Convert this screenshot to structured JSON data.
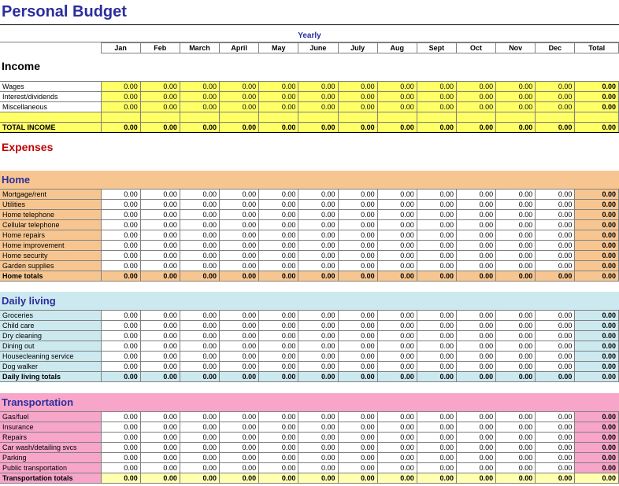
{
  "title": "Personal Budget",
  "yearly_label": "Yearly",
  "months": [
    "Jan",
    "Feb",
    "March",
    "April",
    "May",
    "June",
    "July",
    "Aug",
    "Sept",
    "Oct",
    "Nov",
    "Dec"
  ],
  "total_label": "Total",
  "sections": {
    "income": {
      "title": "Income",
      "rows": [
        {
          "label": "Wages",
          "vals": [
            "0.00",
            "0.00",
            "0.00",
            "0.00",
            "0.00",
            "0.00",
            "0.00",
            "0.00",
            "0.00",
            "0.00",
            "0.00",
            "0.00"
          ],
          "total": "0.00"
        },
        {
          "label": "Interest/dividends",
          "vals": [
            "0.00",
            "0.00",
            "0.00",
            "0.00",
            "0.00",
            "0.00",
            "0.00",
            "0.00",
            "0.00",
            "0.00",
            "0.00",
            "0.00"
          ],
          "total": "0.00"
        },
        {
          "label": "Miscellaneous",
          "vals": [
            "0.00",
            "0.00",
            "0.00",
            "0.00",
            "0.00",
            "0.00",
            "0.00",
            "0.00",
            "0.00",
            "0.00",
            "0.00",
            "0.00"
          ],
          "total": "0.00"
        }
      ],
      "total_row": {
        "label": "TOTAL INCOME",
        "vals": [
          "0.00",
          "0.00",
          "0.00",
          "0.00",
          "0.00",
          "0.00",
          "0.00",
          "0.00",
          "0.00",
          "0.00",
          "0.00",
          "0.00"
        ],
        "total": "0.00"
      }
    },
    "expenses_title": "Expenses",
    "home": {
      "title": "Home",
      "rows": [
        {
          "label": "Mortgage/rent",
          "vals": [
            "0.00",
            "0.00",
            "0.00",
            "0.00",
            "0.00",
            "0.00",
            "0.00",
            "0.00",
            "0.00",
            "0.00",
            "0.00",
            "0.00"
          ],
          "total": "0.00"
        },
        {
          "label": "Utilities",
          "vals": [
            "0.00",
            "0.00",
            "0.00",
            "0.00",
            "0.00",
            "0.00",
            "0.00",
            "0.00",
            "0.00",
            "0.00",
            "0.00",
            "0.00"
          ],
          "total": "0.00"
        },
        {
          "label": "Home telephone",
          "vals": [
            "0.00",
            "0.00",
            "0.00",
            "0.00",
            "0.00",
            "0.00",
            "0.00",
            "0.00",
            "0.00",
            "0.00",
            "0.00",
            "0.00"
          ],
          "total": "0.00"
        },
        {
          "label": "Cellular telephone",
          "vals": [
            "0.00",
            "0.00",
            "0.00",
            "0.00",
            "0.00",
            "0.00",
            "0.00",
            "0.00",
            "0.00",
            "0.00",
            "0.00",
            "0.00"
          ],
          "total": "0.00"
        },
        {
          "label": "Home repairs",
          "vals": [
            "0.00",
            "0.00",
            "0.00",
            "0.00",
            "0.00",
            "0.00",
            "0.00",
            "0.00",
            "0.00",
            "0.00",
            "0.00",
            "0.00"
          ],
          "total": "0.00"
        },
        {
          "label": "Home improvement",
          "vals": [
            "0.00",
            "0.00",
            "0.00",
            "0.00",
            "0.00",
            "0.00",
            "0.00",
            "0.00",
            "0.00",
            "0.00",
            "0.00",
            "0.00"
          ],
          "total": "0.00"
        },
        {
          "label": "Home security",
          "vals": [
            "0.00",
            "0.00",
            "0.00",
            "0.00",
            "0.00",
            "0.00",
            "0.00",
            "0.00",
            "0.00",
            "0.00",
            "0.00",
            "0.00"
          ],
          "total": "0.00"
        },
        {
          "label": "Garden supplies",
          "vals": [
            "0.00",
            "0.00",
            "0.00",
            "0.00",
            "0.00",
            "0.00",
            "0.00",
            "0.00",
            "0.00",
            "0.00",
            "0.00",
            "0.00"
          ],
          "total": "0.00"
        }
      ],
      "total_row": {
        "label": "Home totals",
        "vals": [
          "0.00",
          "0.00",
          "0.00",
          "0.00",
          "0.00",
          "0.00",
          "0.00",
          "0.00",
          "0.00",
          "0.00",
          "0.00",
          "0.00"
        ],
        "total": "0.00"
      }
    },
    "daily": {
      "title": "Daily living",
      "rows": [
        {
          "label": "Groceries",
          "vals": [
            "0.00",
            "0.00",
            "0.00",
            "0.00",
            "0.00",
            "0.00",
            "0.00",
            "0.00",
            "0.00",
            "0.00",
            "0.00",
            "0.00"
          ],
          "total": "0.00"
        },
        {
          "label": "Child care",
          "vals": [
            "0.00",
            "0.00",
            "0.00",
            "0.00",
            "0.00",
            "0.00",
            "0.00",
            "0.00",
            "0.00",
            "0.00",
            "0.00",
            "0.00"
          ],
          "total": "0.00"
        },
        {
          "label": "Dry cleaning",
          "vals": [
            "0.00",
            "0.00",
            "0.00",
            "0.00",
            "0.00",
            "0.00",
            "0.00",
            "0.00",
            "0.00",
            "0.00",
            "0.00",
            "0.00"
          ],
          "total": "0.00"
        },
        {
          "label": "Dining out",
          "vals": [
            "0.00",
            "0.00",
            "0.00",
            "0.00",
            "0.00",
            "0.00",
            "0.00",
            "0.00",
            "0.00",
            "0.00",
            "0.00",
            "0.00"
          ],
          "total": "0.00"
        },
        {
          "label": "Housecleaning service",
          "vals": [
            "0.00",
            "0.00",
            "0.00",
            "0.00",
            "0.00",
            "0.00",
            "0.00",
            "0.00",
            "0.00",
            "0.00",
            "0.00",
            "0.00"
          ],
          "total": "0.00"
        },
        {
          "label": "Dog walker",
          "vals": [
            "0.00",
            "0.00",
            "0.00",
            "0.00",
            "0.00",
            "0.00",
            "0.00",
            "0.00",
            "0.00",
            "0.00",
            "0.00",
            "0.00"
          ],
          "total": "0.00"
        }
      ],
      "total_row": {
        "label": "Daily living totals",
        "vals": [
          "0.00",
          "0.00",
          "0.00",
          "0.00",
          "0.00",
          "0.00",
          "0.00",
          "0.00",
          "0.00",
          "0.00",
          "0.00",
          "0.00"
        ],
        "total": "0.00"
      }
    },
    "transport": {
      "title": "Transportation",
      "rows": [
        {
          "label": "Gas/fuel",
          "vals": [
            "0.00",
            "0.00",
            "0.00",
            "0.00",
            "0.00",
            "0.00",
            "0.00",
            "0.00",
            "0.00",
            "0.00",
            "0.00",
            "0.00"
          ],
          "total": "0.00"
        },
        {
          "label": "Insurance",
          "vals": [
            "0.00",
            "0.00",
            "0.00",
            "0.00",
            "0.00",
            "0.00",
            "0.00",
            "0.00",
            "0.00",
            "0.00",
            "0.00",
            "0.00"
          ],
          "total": "0.00"
        },
        {
          "label": "Repairs",
          "vals": [
            "0.00",
            "0.00",
            "0.00",
            "0.00",
            "0.00",
            "0.00",
            "0.00",
            "0.00",
            "0.00",
            "0.00",
            "0.00",
            "0.00"
          ],
          "total": "0.00"
        },
        {
          "label": "Car wash/detailing svcs",
          "vals": [
            "0.00",
            "0.00",
            "0.00",
            "0.00",
            "0.00",
            "0.00",
            "0.00",
            "0.00",
            "0.00",
            "0.00",
            "0.00",
            "0.00"
          ],
          "total": "0.00"
        },
        {
          "label": "Parking",
          "vals": [
            "0.00",
            "0.00",
            "0.00",
            "0.00",
            "0.00",
            "0.00",
            "0.00",
            "0.00",
            "0.00",
            "0.00",
            "0.00",
            "0.00"
          ],
          "total": "0.00"
        },
        {
          "label": "Public transportation",
          "vals": [
            "0.00",
            "0.00",
            "0.00",
            "0.00",
            "0.00",
            "0.00",
            "0.00",
            "0.00",
            "0.00",
            "0.00",
            "0.00",
            "0.00"
          ],
          "total": "0.00"
        }
      ],
      "total_row": {
        "label": "Transportation totals",
        "vals": [
          "0.00",
          "0.00",
          "0.00",
          "0.00",
          "0.00",
          "0.00",
          "0.00",
          "0.00",
          "0.00",
          "0.00",
          "0.00",
          "0.00"
        ],
        "total": "0.00"
      }
    }
  },
  "colors": {
    "title": "#2d2d9e",
    "yellow": "#ffff66",
    "orange": "#f7c690",
    "lightblue": "#cce9ef",
    "pink": "#f7a6c9",
    "lightyellow": "#ffffb0",
    "expenses": "#c00000",
    "border": "#808080"
  }
}
